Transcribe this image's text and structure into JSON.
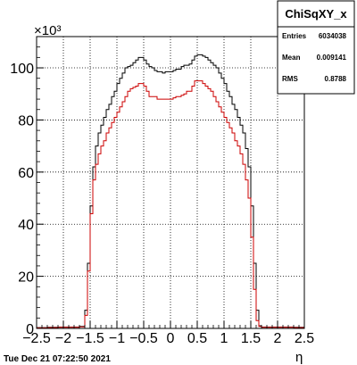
{
  "chart_data": {
    "type": "line",
    "title": "",
    "xlabel": "η",
    "ylabel": "",
    "y_exponent_label": "×10³",
    "xlim": [
      -2.5,
      2.5
    ],
    "ylim": [
      0,
      112
    ],
    "grid": true,
    "x_ticks": [
      -2.5,
      -2,
      -1.5,
      -1,
      -0.5,
      0,
      0.5,
      1,
      1.5,
      2,
      2.5
    ],
    "x_tick_labels": [
      "−2.5",
      "−2",
      "−1.5",
      "−1",
      "−0.5",
      "0",
      "0.5",
      "1",
      "1.5",
      "2",
      "2.5"
    ],
    "y_ticks": [
      0,
      20,
      40,
      60,
      80,
      100
    ],
    "y_tick_labels": [
      "0",
      "20",
      "40",
      "60",
      "80",
      "100"
    ],
    "series": [
      {
        "color": "#000000",
        "x": [
          -2.5,
          -2.3,
          -2.1,
          -1.9,
          -1.7,
          -1.6,
          -1.55,
          -1.5,
          -1.45,
          -1.4,
          -1.35,
          -1.3,
          -1.25,
          -1.2,
          -1.15,
          -1.1,
          -1.05,
          -1.0,
          -0.95,
          -0.9,
          -0.85,
          -0.8,
          -0.75,
          -0.7,
          -0.65,
          -0.6,
          -0.55,
          -0.5,
          -0.45,
          -0.4,
          -0.35,
          -0.3,
          -0.25,
          -0.2,
          -0.15,
          -0.1,
          -0.05,
          0.0,
          0.05,
          0.1,
          0.15,
          0.2,
          0.25,
          0.3,
          0.35,
          0.4,
          0.45,
          0.5,
          0.55,
          0.6,
          0.65,
          0.7,
          0.75,
          0.8,
          0.85,
          0.9,
          0.95,
          1.0,
          1.05,
          1.1,
          1.15,
          1.2,
          1.25,
          1.3,
          1.35,
          1.4,
          1.45,
          1.5,
          1.55,
          1.6,
          1.65,
          1.7,
          1.9,
          2.1,
          2.3,
          2.5
        ],
        "y": [
          0.3,
          0.4,
          0.5,
          0.5,
          0.8,
          7,
          25,
          47,
          62,
          70,
          75,
          78,
          81,
          84,
          86,
          89,
          91,
          94,
          96,
          98,
          100,
          100.5,
          101,
          102,
          103,
          104,
          104,
          103,
          101.5,
          100.5,
          100,
          99,
          98.5,
          98.5,
          98,
          98.5,
          98.5,
          98.5,
          99,
          99.5,
          99.5,
          100.5,
          101,
          101,
          101.5,
          103,
          104.5,
          105,
          105,
          104.5,
          104,
          103,
          102,
          101,
          100,
          98,
          96,
          94,
          91,
          89,
          86,
          84,
          81,
          78,
          75,
          69,
          62,
          47,
          25,
          7,
          1,
          0.5,
          0.5,
          0.5,
          0.4,
          0.3
        ]
      },
      {
        "color": "#cc0000",
        "x": [
          -2.5,
          -2.3,
          -2.1,
          -1.9,
          -1.7,
          -1.6,
          -1.55,
          -1.5,
          -1.45,
          -1.4,
          -1.35,
          -1.3,
          -1.25,
          -1.2,
          -1.15,
          -1.1,
          -1.05,
          -1.0,
          -0.95,
          -0.9,
          -0.85,
          -0.8,
          -0.75,
          -0.7,
          -0.65,
          -0.6,
          -0.55,
          -0.5,
          -0.45,
          -0.4,
          -0.35,
          -0.3,
          -0.25,
          -0.2,
          -0.15,
          -0.1,
          -0.05,
          0.0,
          0.05,
          0.1,
          0.15,
          0.2,
          0.25,
          0.3,
          0.35,
          0.4,
          0.45,
          0.5,
          0.55,
          0.6,
          0.65,
          0.7,
          0.75,
          0.8,
          0.85,
          0.9,
          0.95,
          1.0,
          1.05,
          1.1,
          1.15,
          1.2,
          1.25,
          1.3,
          1.35,
          1.4,
          1.45,
          1.5,
          1.55,
          1.6,
          1.65,
          1.7,
          1.9,
          2.1,
          2.3,
          2.5
        ],
        "y": [
          0.2,
          0.3,
          0.4,
          0.4,
          0.6,
          5,
          22,
          44,
          57,
          63,
          67,
          70,
          72,
          75,
          77,
          79,
          81,
          83,
          85,
          87,
          89,
          91,
          92,
          92.5,
          93,
          94,
          94,
          93,
          91,
          89,
          89,
          89,
          88,
          88,
          88,
          88,
          88,
          88,
          88.5,
          89,
          89,
          89.5,
          90,
          91,
          91,
          93,
          95,
          95,
          95,
          94,
          93,
          92,
          91,
          89,
          87,
          85,
          83,
          81,
          79,
          77,
          75,
          72,
          70,
          67,
          63,
          57,
          50,
          35,
          15,
          3,
          0.8,
          0.4,
          0.4,
          0.4,
          0.3,
          0.2
        ]
      }
    ]
  },
  "stats_box": {
    "title": "ChiSqXY_x",
    "rows": [
      {
        "label": "Entries",
        "value": "6034038"
      },
      {
        "label": "Mean",
        "value": "0.009141"
      },
      {
        "label": "RMS",
        "value": "0.8788"
      }
    ]
  },
  "footer": {
    "datestamp": "Tue Dec 21 07:22:50 2021"
  }
}
